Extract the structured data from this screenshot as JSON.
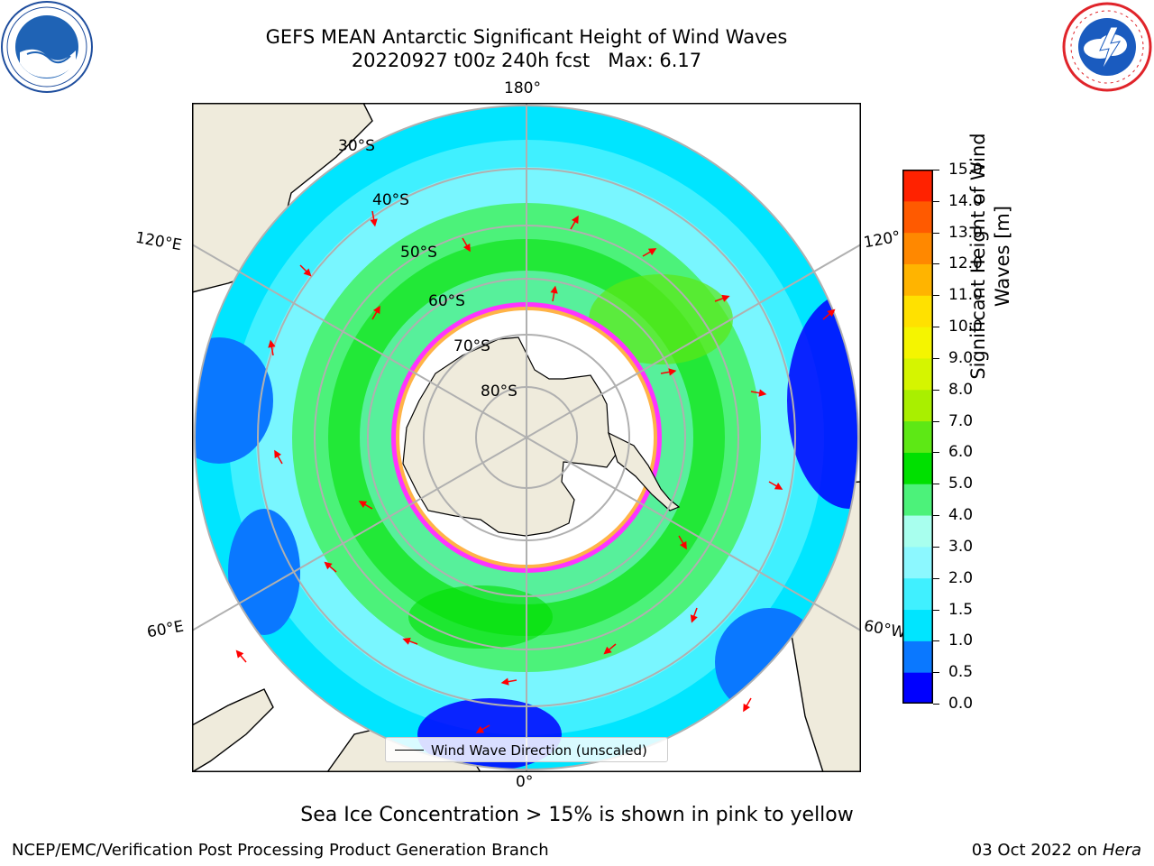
{
  "title": {
    "line1": "GEFS MEAN Antarctic Significant Height of Wind Waves",
    "line2": "20220927 t00z 240h fcst   Max: 6.17"
  },
  "logos": {
    "left": "noaa-logo",
    "right": "national-weather-service-logo"
  },
  "map": {
    "projection": "south-polar-stereographic",
    "longitude_labels": {
      "top": "180°",
      "bottom": "0°",
      "upper_left": "120°E",
      "upper_right": "120°",
      "lower_left": "60°E",
      "lower_right": "60°W"
    },
    "latitude_labels": [
      "30°S",
      "40°S",
      "50°S",
      "60°S",
      "70°S",
      "80°S"
    ],
    "colors": {
      "land": "#efebdc",
      "coast": "#000000",
      "grid": "#b0b0b0",
      "arrow": "#ff0000",
      "ice_edge": "#ff33ff",
      "ice_inner": "#ffb347"
    }
  },
  "colorbar": {
    "ticks": [
      "15.0",
      "14.0",
      "13.0",
      "12.0",
      "11.0",
      "10.0",
      "9.0",
      "8.0",
      "7.0",
      "6.0",
      "5.0",
      "4.0",
      "3.0",
      "2.0",
      "1.5",
      "1.0",
      "0.5",
      "0.0"
    ],
    "label_line1": "Significant Height of Wind",
    "label_line2": "Waves [m]",
    "colors_bottom_to_top": [
      "#0000ff",
      "#0a78ff",
      "#00e5ff",
      "#40f0ff",
      "#8cf8ff",
      "#a8ffee",
      "#4cf27a",
      "#00e000",
      "#5de815",
      "#a9ef00",
      "#d5f500",
      "#f5f500",
      "#ffe100",
      "#ffb400",
      "#ff8800",
      "#ff5a00",
      "#ff2200"
    ]
  },
  "legend": {
    "label": "Wind Wave Direction (unscaled)"
  },
  "ice_note": "Sea Ice Concentration > 15% is shown in pink to yellow",
  "footer": {
    "left": "NCEP/EMC/Verification Post Processing Product Generation Branch",
    "date": "03 Oct 2022 on ",
    "host": "Hera"
  }
}
